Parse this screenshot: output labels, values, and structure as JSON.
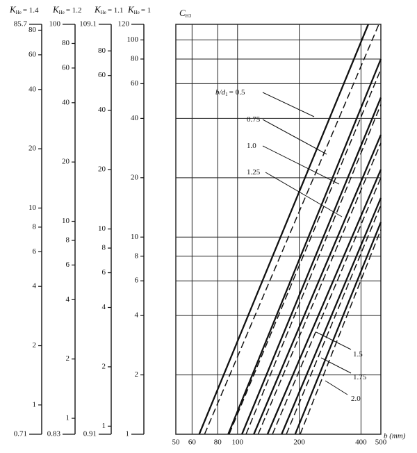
{
  "chart_data": [
    {
      "type": "scale",
      "title": {
        "main": "K",
        "sub": "He",
        "rest": "= 1.4"
      },
      "ylim": [
        0.71,
        85.7
      ],
      "yticks": [
        0.71,
        1,
        2,
        4,
        6,
        8,
        10,
        20,
        40,
        60,
        80,
        85.7
      ],
      "log_y": true
    },
    {
      "type": "scale",
      "title": {
        "main": "K",
        "sub": "He",
        "rest": "= 1.2"
      },
      "ylim": [
        0.83,
        100
      ],
      "yticks": [
        0.83,
        1,
        2,
        4,
        6,
        8,
        10,
        20,
        40,
        60,
        80,
        100
      ],
      "log_y": true
    },
    {
      "type": "scale",
      "title": {
        "main": "K",
        "sub": "He",
        "rest": "= 1.1"
      },
      "ylim": [
        0.91,
        109.1
      ],
      "yticks": [
        0.91,
        1,
        2,
        4,
        6,
        8,
        10,
        20,
        40,
        60,
        80,
        109.1
      ],
      "log_y": true
    },
    {
      "type": "scale",
      "title": {
        "main": "K",
        "sub": "He",
        "rest": "= 1"
      },
      "ylim": [
        1,
        120
      ],
      "yticks": [
        1,
        2,
        4,
        6,
        8,
        10,
        20,
        40,
        60,
        80,
        100,
        120
      ],
      "log_y": true
    },
    {
      "type": "line",
      "y_label": {
        "main": "C",
        "sub": "H3"
      },
      "x_label": "b (mm)",
      "series_label_prefix": {
        "main": "b/d",
        "sub": "1",
        "rest": "="
      },
      "xlim": [
        50,
        500
      ],
      "ylim": [
        1,
        120
      ],
      "xticks": [
        50,
        60,
        80,
        100,
        200,
        400,
        500
      ],
      "yticks": [
        1,
        2,
        4,
        6,
        8,
        10,
        20,
        40,
        60,
        80,
        100,
        120
      ],
      "log_x": true,
      "log_y": true,
      "grid": true,
      "series": [
        {
          "name": "0.5",
          "color": "#111111",
          "dash": false,
          "x": [
            65,
            434
          ],
          "values": [
            1,
            120
          ]
        },
        {
          "color": "#111111",
          "dash": true,
          "x": [
            69,
            489
          ],
          "values": [
            1,
            120
          ]
        },
        {
          "name": "0.75",
          "color": "#111111",
          "dash": false,
          "x": [
            90,
            500
          ],
          "values": [
            1,
            80
          ]
        },
        {
          "color": "#111111",
          "dash": true,
          "x": [
            91,
            500
          ],
          "values": [
            1,
            71
          ]
        },
        {
          "name": "1.0",
          "color": "#111111",
          "dash": false,
          "x": [
            105,
            500
          ],
          "values": [
            1,
            51
          ]
        },
        {
          "color": "#111111",
          "dash": true,
          "x": [
            110,
            500
          ],
          "values": [
            1,
            47
          ]
        },
        {
          "name": "1.25",
          "color": "#111111",
          "dash": false,
          "x": [
            120,
            500
          ],
          "values": [
            1,
            33
          ]
        },
        {
          "color": "#111111",
          "dash": true,
          "x": [
            126,
            500
          ],
          "values": [
            1,
            30
          ]
        },
        {
          "name": "1.5",
          "color": "#111111",
          "dash": false,
          "x": [
            140,
            500
          ],
          "values": [
            1,
            22
          ]
        },
        {
          "color": "#111111",
          "dash": true,
          "x": [
            148,
            500
          ],
          "values": [
            1,
            20
          ]
        },
        {
          "name": "1.75",
          "color": "#111111",
          "dash": false,
          "x": [
            164,
            500
          ],
          "values": [
            1,
            15.8
          ]
        },
        {
          "color": "#111111",
          "dash": true,
          "x": [
            173,
            500
          ],
          "values": [
            1,
            14.5
          ]
        },
        {
          "name": "2.0",
          "color": "#111111",
          "dash": false,
          "x": [
            191,
            500
          ],
          "values": [
            1,
            11.9
          ]
        },
        {
          "color": "#111111",
          "dash": true,
          "x": [
            202,
            500
          ],
          "values": [
            1,
            10.9
          ]
        }
      ]
    }
  ]
}
